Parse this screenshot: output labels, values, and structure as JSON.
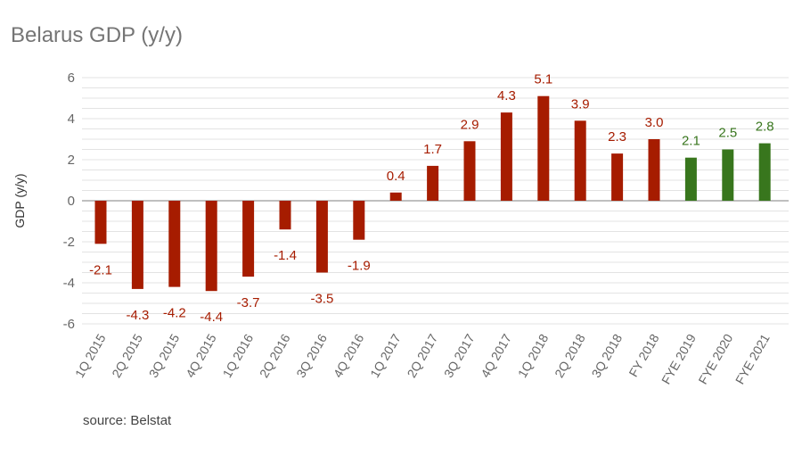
{
  "title": "Belarus GDP (y/y)",
  "source": "source: Belstat",
  "colors": {
    "actual": "#a61c00",
    "forecast": "#38761d",
    "grid": "#e3e3e3",
    "zero_line": "#999999"
  },
  "chart_data": {
    "type": "bar",
    "title": "Belarus GDP (y/y)",
    "xlabel": "",
    "ylabel": "GDP (y/y)",
    "ylim": [
      -6,
      6
    ],
    "y_ticks": [
      6,
      4,
      2,
      0,
      -2,
      -4,
      -6
    ],
    "grid": true,
    "categories": [
      "1Q 2015",
      "2Q 2015",
      "3Q 2015",
      "4Q 2015",
      "1Q 2016",
      "2Q 2016",
      "3Q 2016",
      "4Q 2016",
      "1Q 2017",
      "2Q 2017",
      "3Q 2017",
      "4Q 2017",
      "1Q 2018",
      "2Q 2018",
      "3Q 2018",
      "FY 2018",
      "FYE 2019",
      "FYE 2020",
      "FYE 2021"
    ],
    "values": [
      -2.1,
      -4.3,
      -4.2,
      -4.4,
      -3.7,
      -1.4,
      -3.5,
      -1.9,
      0.4,
      1.7,
      2.9,
      4.3,
      5.1,
      3.9,
      2.3,
      3.0,
      2.1,
      2.5,
      2.8
    ],
    "labels": [
      "-2.1",
      "-4.3",
      "-4.2",
      "-4.4",
      "-3.7",
      "-1.4",
      "-3.5",
      "-1.9",
      "0.4",
      "1.7",
      "2.9",
      "4.3",
      "5.1",
      "3.9",
      "2.3",
      "3.0",
      "2.1",
      "2.5",
      "2.8"
    ],
    "forecast": [
      false,
      false,
      false,
      false,
      false,
      false,
      false,
      false,
      false,
      false,
      false,
      false,
      false,
      false,
      false,
      false,
      true,
      true,
      true
    ]
  }
}
